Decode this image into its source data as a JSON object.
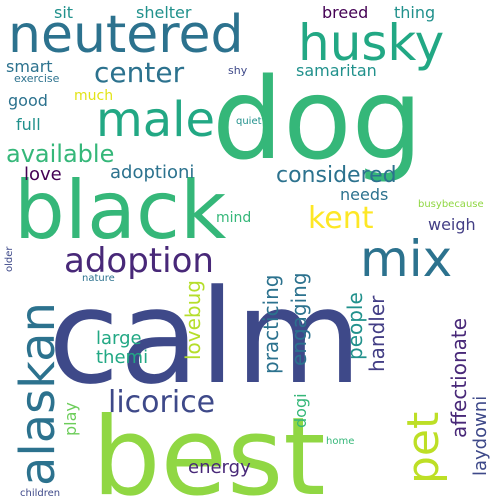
{
  "words": [
    {
      "text": "calm",
      "color": "#3e4989"
    },
    {
      "text": "dog",
      "color": "#35b779"
    },
    {
      "text": "best",
      "color": "#90d743"
    },
    {
      "text": "black",
      "color": "#35b779"
    },
    {
      "text": "neutered",
      "color": "#2c728e"
    },
    {
      "text": "alaskan",
      "color": "#2c728e"
    },
    {
      "text": "mix",
      "color": "#2c728e"
    },
    {
      "text": "husky",
      "color": "#22a884"
    },
    {
      "text": "male",
      "color": "#22a884"
    },
    {
      "text": "pet",
      "color": "#bddf26"
    },
    {
      "text": "adoption",
      "color": "#482878"
    },
    {
      "text": "licorice",
      "color": "#3e4989"
    },
    {
      "text": "kent",
      "color": "#fde725"
    },
    {
      "text": "center",
      "color": "#2c728e"
    },
    {
      "text": "available",
      "color": "#35b779"
    },
    {
      "text": "lovebug",
      "color": "#b5de2b"
    },
    {
      "text": "affectionate",
      "color": "#482878"
    },
    {
      "text": "considered",
      "color": "#2c728e"
    },
    {
      "text": "practicing",
      "color": "#2c728e"
    },
    {
      "text": "engaging",
      "color": "#2c728e"
    },
    {
      "text": "people",
      "color": "#21918c"
    },
    {
      "text": "handler",
      "color": "#433e85"
    },
    {
      "text": "laydowni",
      "color": "#3e4989"
    },
    {
      "text": "energy",
      "color": "#482878"
    },
    {
      "text": "large",
      "color": "#22a884"
    },
    {
      "text": "themi",
      "color": "#22a884"
    },
    {
      "text": "adoptioni",
      "color": "#2c728e"
    },
    {
      "text": "love",
      "color": "#440154"
    },
    {
      "text": "play",
      "color": "#6ccd5a"
    },
    {
      "text": "dogi",
      "color": "#35b779"
    },
    {
      "text": "full",
      "color": "#21918c"
    },
    {
      "text": "good",
      "color": "#2c728e"
    },
    {
      "text": "smart",
      "color": "#2c728e"
    },
    {
      "text": "much",
      "color": "#e2e418"
    },
    {
      "text": "sit",
      "color": "#21918c"
    },
    {
      "text": "shelter",
      "color": "#21918c"
    },
    {
      "text": "breed",
      "color": "#440154"
    },
    {
      "text": "thing",
      "color": "#21918c"
    },
    {
      "text": "samaritan",
      "color": "#21918c"
    },
    {
      "text": "needs",
      "color": "#2c728e"
    },
    {
      "text": "weigh",
      "color": "#433e85"
    },
    {
      "text": "mind",
      "color": "#35b779"
    },
    {
      "text": "exercise",
      "color": "#2c728e"
    },
    {
      "text": "shy",
      "color": "#3e4989"
    },
    {
      "text": "quiet",
      "color": "#21918c"
    },
    {
      "text": "busybecause",
      "color": "#90d743"
    },
    {
      "text": "older",
      "color": "#3e4989"
    },
    {
      "text": "nature",
      "color": "#2c728e"
    },
    {
      "text": "home",
      "color": "#35b779"
    },
    {
      "text": "children",
      "color": "#3e4989"
    }
  ]
}
